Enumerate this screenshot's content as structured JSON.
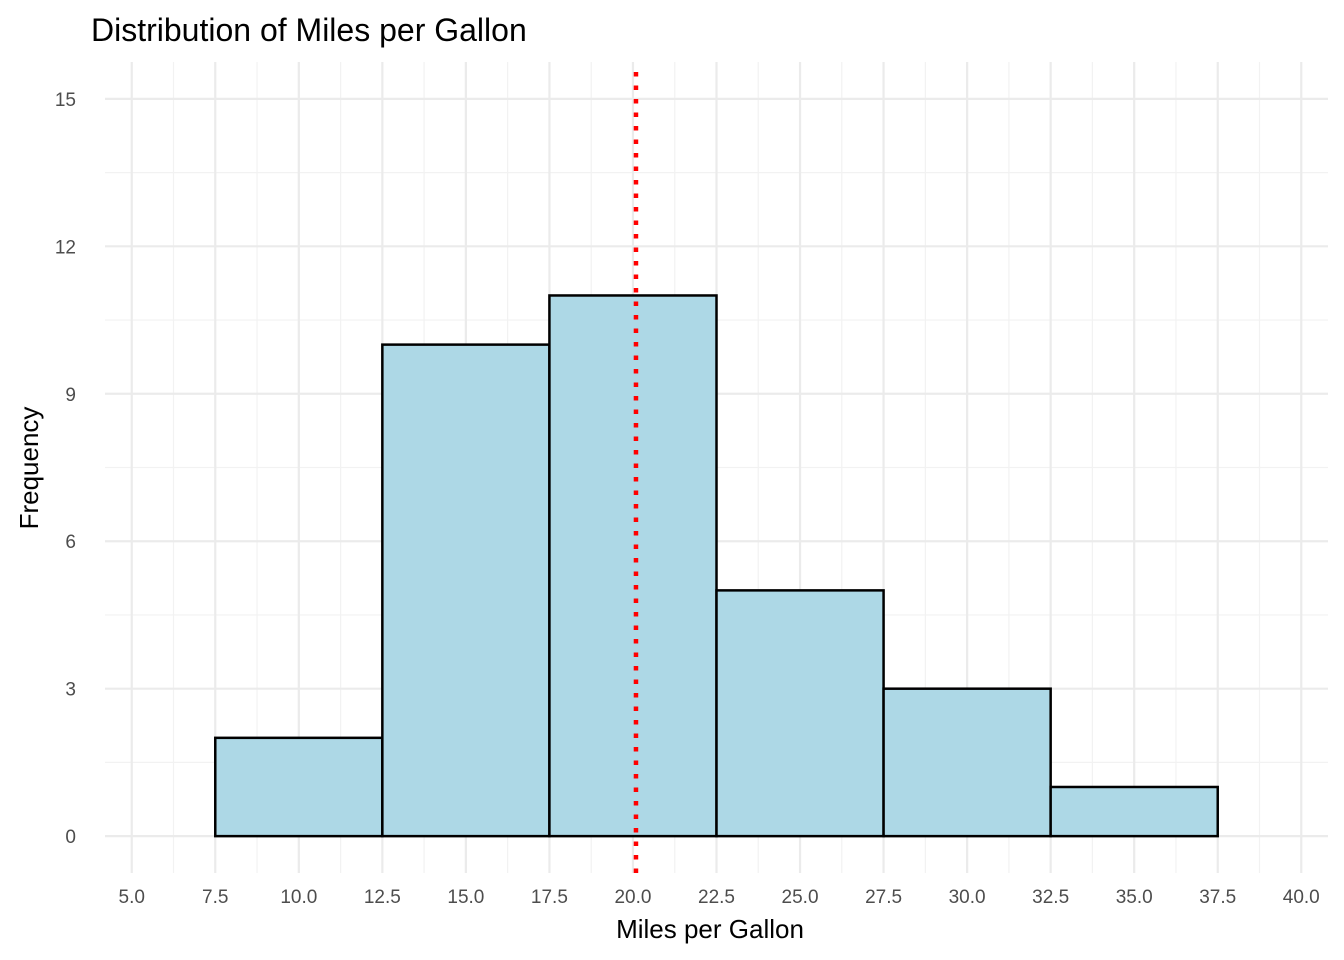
{
  "chart_data": {
    "type": "histogram",
    "title": "Distribution of Miles per Gallon",
    "xlabel": "Miles per Gallon",
    "ylabel": "Frequency",
    "xlim": [
      4.2,
      40.8
    ],
    "ylim": [
      -0.75,
      15.75
    ],
    "x_ticks": [
      5,
      7.5,
      10,
      12.5,
      15,
      17.5,
      20,
      22.5,
      25,
      27.5,
      30,
      32.5,
      35,
      37.5,
      40
    ],
    "x_tick_labels": [
      "5.0",
      "7.5",
      "10.0",
      "12.5",
      "15.0",
      "17.5",
      "20.0",
      "22.5",
      "25.0",
      "27.5",
      "30.0",
      "32.5",
      "35.0",
      "37.5",
      "40.0"
    ],
    "y_ticks": [
      0,
      3,
      6,
      9,
      12,
      15
    ],
    "y_tick_labels": [
      "0",
      "3",
      "6",
      "9",
      "12",
      "15"
    ],
    "bins": [
      {
        "start": 7.5,
        "end": 12.5,
        "count": 2
      },
      {
        "start": 12.5,
        "end": 17.5,
        "count": 10
      },
      {
        "start": 17.5,
        "end": 22.5,
        "count": 11
      },
      {
        "start": 22.5,
        "end": 27.5,
        "count": 5
      },
      {
        "start": 27.5,
        "end": 32.5,
        "count": 3
      },
      {
        "start": 32.5,
        "end": 37.5,
        "count": 1
      }
    ],
    "reference_line": {
      "x": 20.09,
      "style": "dotted",
      "color": "#ff0000"
    },
    "bar_fill": "#add8e6",
    "bar_outline": "#000000",
    "grid": true
  }
}
